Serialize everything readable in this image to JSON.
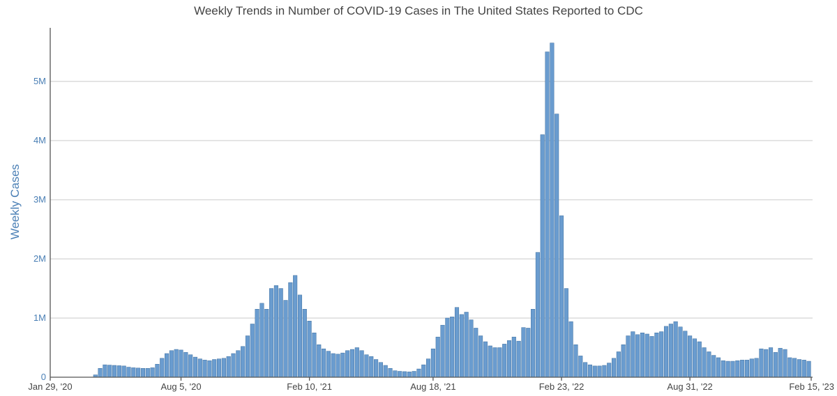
{
  "chart_data": {
    "type": "bar",
    "title": "Weekly Trends in Number of COVID-19 Cases in The United States Reported to CDC",
    "xlabel": "",
    "ylabel": "Weekly Cases",
    "ylim": [
      0,
      5800000
    ],
    "grid": true,
    "yticks": [
      {
        "value": 0,
        "label": "0"
      },
      {
        "value": 1000000,
        "label": "1M"
      },
      {
        "value": 2000000,
        "label": "2M"
      },
      {
        "value": 3000000,
        "label": "3M"
      },
      {
        "value": 4000000,
        "label": "4M"
      },
      {
        "value": 5000000,
        "label": "5M"
      }
    ],
    "xticks": [
      {
        "week_index": 0,
        "label": "Jan 29, '20"
      },
      {
        "week_index": 27,
        "label": "Aug 5, '20"
      },
      {
        "week_index": 54,
        "label": "Feb 10, '21"
      },
      {
        "week_index": 80,
        "label": "Aug 18, '21"
      },
      {
        "week_index": 107,
        "label": "Feb 23, '22"
      },
      {
        "week_index": 134,
        "label": "Aug 31, '22"
      },
      {
        "week_index": 158,
        "label": "Feb 15, '23"
      }
    ],
    "series": [
      {
        "name": "Weekly Cases",
        "color": "#6a9ccf",
        "values": [
          0,
          0,
          0,
          0,
          0,
          0,
          0,
          0,
          0,
          40000,
          150000,
          210000,
          205000,
          200000,
          195000,
          190000,
          170000,
          160000,
          155000,
          150000,
          150000,
          160000,
          220000,
          320000,
          400000,
          450000,
          470000,
          460000,
          420000,
          380000,
          340000,
          310000,
          290000,
          280000,
          300000,
          310000,
          320000,
          350000,
          400000,
          450000,
          520000,
          700000,
          900000,
          1150000,
          1250000,
          1150000,
          1500000,
          1550000,
          1500000,
          1300000,
          1600000,
          1720000,
          1390000,
          1150000,
          950000,
          750000,
          550000,
          480000,
          440000,
          400000,
          390000,
          410000,
          450000,
          470000,
          500000,
          450000,
          380000,
          350000,
          300000,
          250000,
          200000,
          150000,
          110000,
          100000,
          95000,
          90000,
          100000,
          140000,
          210000,
          310000,
          480000,
          680000,
          880000,
          1000000,
          1020000,
          1180000,
          1060000,
          1100000,
          970000,
          830000,
          700000,
          600000,
          530000,
          500000,
          500000,
          560000,
          620000,
          680000,
          610000,
          840000,
          830000,
          1150000,
          2110000,
          4100000,
          5500000,
          5650000,
          4450000,
          2730000,
          1500000,
          940000,
          550000,
          360000,
          250000,
          210000,
          190000,
          190000,
          200000,
          240000,
          320000,
          430000,
          550000,
          700000,
          770000,
          720000,
          750000,
          730000,
          690000,
          750000,
          770000,
          860000,
          900000,
          940000,
          850000,
          780000,
          700000,
          650000,
          600000,
          500000,
          430000,
          370000,
          330000,
          280000,
          270000,
          270000,
          280000,
          290000,
          290000,
          310000,
          320000,
          480000,
          470000,
          500000,
          420000,
          490000,
          470000,
          330000,
          320000,
          300000,
          290000,
          270000
        ]
      }
    ]
  }
}
